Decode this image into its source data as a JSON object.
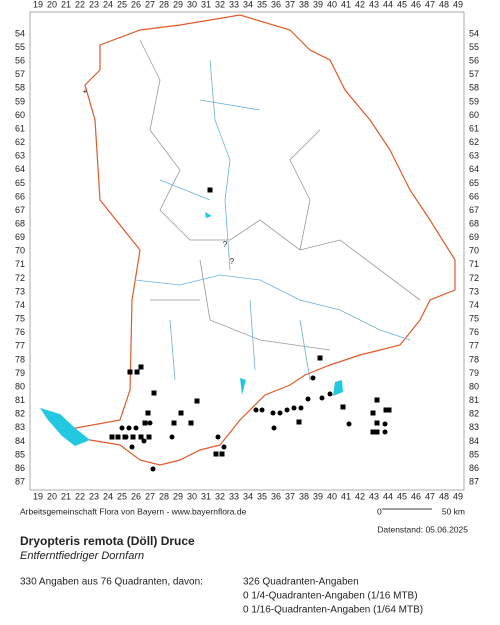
{
  "map": {
    "col_labels": [
      19,
      20,
      21,
      22,
      23,
      24,
      25,
      26,
      27,
      28,
      29,
      30,
      31,
      32,
      33,
      34,
      35,
      36,
      37,
      38,
      39,
      40,
      41,
      42,
      43,
      44,
      45,
      46,
      47,
      48,
      49
    ],
    "row_labels": [
      54,
      55,
      56,
      57,
      58,
      59,
      60,
      61,
      62,
      63,
      64,
      65,
      66,
      67,
      68,
      69,
      70,
      71,
      72,
      73,
      74,
      75,
      76,
      77,
      78,
      79,
      80,
      81,
      82,
      83,
      84,
      85,
      86,
      87
    ],
    "uncertain_marks": [
      "?",
      "?"
    ]
  },
  "footer": {
    "credit": "Arbeitsgemeinschaft Flora von Bayern - www.bayernflora.de",
    "scale_start": "0",
    "scale_end": "50 km",
    "date": "Datenstand: 05.06.2025",
    "title": "Dryopteris remota (Döll) Druce",
    "subtitle": "Entferntfiedriger Dornfarn",
    "summary": "330 Angaben aus 76 Quadranten, davon:",
    "details": [
      "326 Quadranten-Angaben",
      "0 1/4-Quadranten-Angaben (1/16 MTB)",
      "0 1/16-Quadranten-Angaben (1/64 MTB)"
    ]
  }
}
